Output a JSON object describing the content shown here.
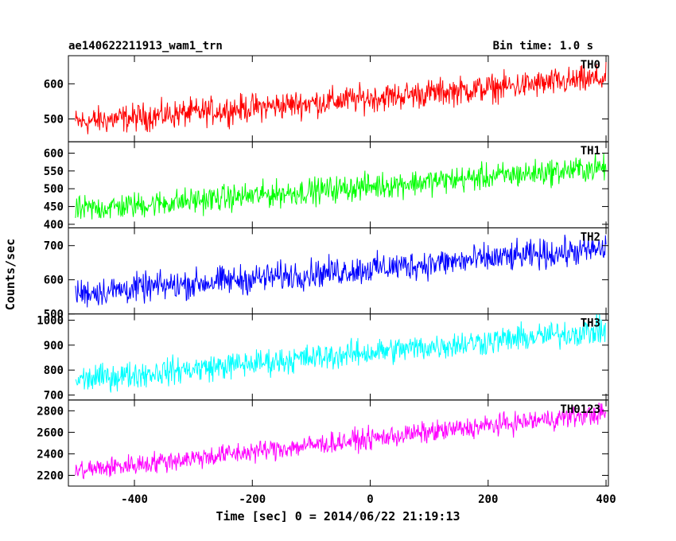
{
  "header": {
    "title": "ae140622211913_wam1_trn",
    "bin_time": "Bin time: 1.0 s"
  },
  "colors": {
    "frame": "#000000"
  },
  "chart_data": {
    "type": "line",
    "xlabel": "Time [sec] 0 = 2014/06/22 21:19:13",
    "ylabel": "Counts/sec",
    "xlim": [
      -512,
      404
    ],
    "x_ticks": [
      -400,
      -200,
      0,
      200,
      400
    ],
    "x_range": [
      -500,
      400
    ],
    "x_step": 1,
    "panels": [
      {
        "name": "TH0",
        "color": "#ff0000",
        "ylim": [
          435,
          680
        ],
        "y_ticks": [
          500,
          600
        ],
        "trend_start": 490,
        "trend_end": 615,
        "spread": 28
      },
      {
        "name": "TH1",
        "color": "#00ff00",
        "ylim": [
          390,
          632
        ],
        "y_ticks": [
          400,
          450,
          500,
          550,
          600
        ],
        "trend_start": 440,
        "trend_end": 560,
        "spread": 26
      },
      {
        "name": "TH2",
        "color": "#0000ff",
        "ylim": [
          500,
          752
        ],
        "y_ticks": [
          500,
          600,
          700
        ],
        "trend_start": 560,
        "trend_end": 690,
        "spread": 30
      },
      {
        "name": "TH3",
        "color": "#00ffff",
        "ylim": [
          680,
          1025
        ],
        "y_ticks": [
          700,
          800,
          900,
          1000
        ],
        "trend_start": 760,
        "trend_end": 960,
        "spread": 38
      },
      {
        "name": "TH0123",
        "color": "#ff00ff",
        "ylim": [
          2100,
          2900
        ],
        "y_ticks": [
          2200,
          2400,
          2600,
          2800
        ],
        "trend_start": 2240,
        "trend_end": 2780,
        "spread": 70
      }
    ]
  }
}
